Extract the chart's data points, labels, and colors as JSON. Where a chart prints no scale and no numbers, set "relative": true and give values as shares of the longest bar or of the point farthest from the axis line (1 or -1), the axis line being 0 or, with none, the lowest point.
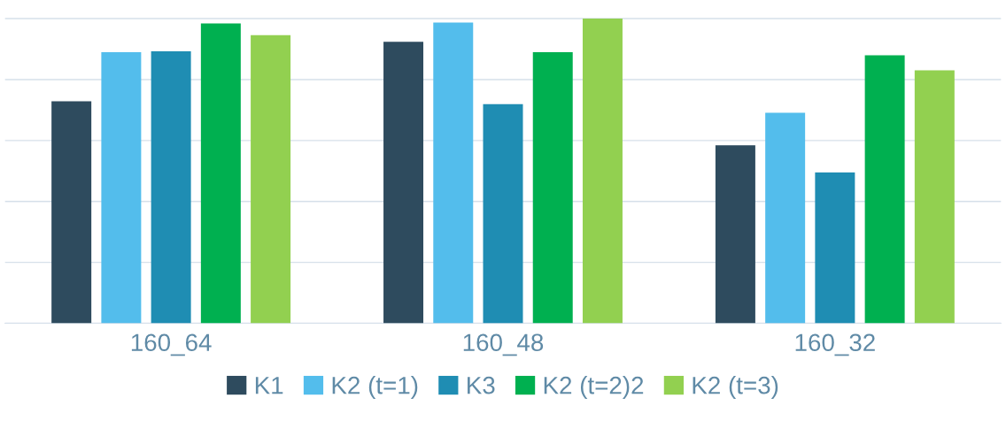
{
  "chart_data": {
    "type": "bar",
    "relative": true,
    "grid": "y",
    "legend": "bottom",
    "categories": [
      "160_64",
      "160_48",
      "160_32"
    ],
    "series": [
      {
        "name": "K1",
        "color": "#2e4b5e",
        "values": [
          0.729,
          0.924,
          0.584
        ]
      },
      {
        "name": "K2 (t=1)",
        "color": "#53bdec",
        "values": [
          0.89,
          0.987,
          0.691
        ]
      },
      {
        "name": "K3",
        "color": "#1f8db3",
        "values": [
          0.893,
          0.719,
          0.495
        ]
      },
      {
        "name": "K2 (t=2)2",
        "color": "#00b050",
        "values": [
          0.984,
          0.89,
          0.88
        ]
      },
      {
        "name": "K2 (t=3)",
        "color": "#92d050",
        "values": [
          0.946,
          1,
          0.83
        ]
      }
    ]
  }
}
